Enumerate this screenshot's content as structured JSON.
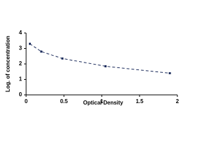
{
  "chart_data": {
    "type": "scatter",
    "x_label": "Optical Density",
    "y_label": "Log. of concentration",
    "series": [
      {
        "color": "#1a2a5a",
        "x": [
          0.05,
          0.2,
          0.48,
          1.05,
          1.9
        ],
        "values": [
          3.3,
          2.8,
          2.35,
          1.85,
          1.4
        ]
      }
    ],
    "trendline": true,
    "xlim": [
      0,
      2
    ],
    "xticks": [
      0,
      0.5,
      1,
      1.5,
      2
    ],
    "ylim": [
      0,
      4
    ],
    "yticks": [
      0,
      1,
      2,
      3,
      4
    ],
    "grid": false
  }
}
